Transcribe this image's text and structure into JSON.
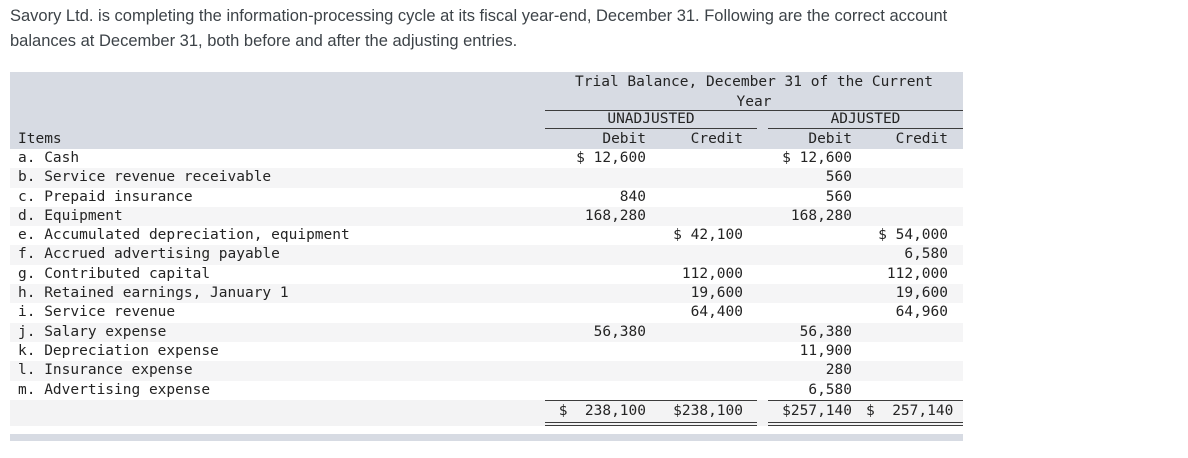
{
  "intro": {
    "line1": "Savory Ltd. is completing the information-processing cycle at its fiscal year-end, December 31. Following are the correct account",
    "line2": "balances at December 31, both before and after the adjusting entries."
  },
  "table": {
    "title_line1": "Trial Balance, December 31 of the Current",
    "title_line2": "Year",
    "group_unadjusted": "UNADJUSTED",
    "group_adjusted": "ADJUSTED",
    "items_header": "Items",
    "col_headers": {
      "unadjusted_debit": "Debit",
      "unadjusted_credit": "Credit",
      "adjusted_debit": "Debit",
      "adjusted_credit": "Credit"
    },
    "rows": [
      {
        "item": "a. Cash",
        "u_debit": "$ 12,600",
        "u_credit": "",
        "a_debit": "$ 12,600",
        "a_credit": ""
      },
      {
        "item": "b. Service revenue receivable",
        "u_debit": "",
        "u_credit": "",
        "a_debit": "560",
        "a_credit": ""
      },
      {
        "item": "c. Prepaid insurance",
        "u_debit": "840",
        "u_credit": "",
        "a_debit": "560",
        "a_credit": ""
      },
      {
        "item": "d. Equipment",
        "u_debit": "168,280",
        "u_credit": "",
        "a_debit": "168,280",
        "a_credit": ""
      },
      {
        "item": "e. Accumulated depreciation, equipment",
        "u_debit": "",
        "u_credit": "$ 42,100",
        "a_debit": "",
        "a_credit": "$ 54,000"
      },
      {
        "item": "f. Accrued advertising payable",
        "u_debit": "",
        "u_credit": "",
        "a_debit": "",
        "a_credit": "6,580"
      },
      {
        "item": "g. Contributed capital",
        "u_debit": "",
        "u_credit": "112,000",
        "a_debit": "",
        "a_credit": "112,000"
      },
      {
        "item": "h. Retained earnings, January 1",
        "u_debit": "",
        "u_credit": "19,600",
        "a_debit": "",
        "a_credit": "19,600"
      },
      {
        "item": "i. Service revenue",
        "u_debit": "",
        "u_credit": "64,400",
        "a_debit": "",
        "a_credit": "64,960"
      },
      {
        "item": "j. Salary expense",
        "u_debit": "56,380",
        "u_credit": "",
        "a_debit": "56,380",
        "a_credit": ""
      },
      {
        "item": "k. Depreciation expense",
        "u_debit": "",
        "u_credit": "",
        "a_debit": "11,900",
        "a_credit": ""
      },
      {
        "item": "l. Insurance expense",
        "u_debit": "",
        "u_credit": "",
        "a_debit": "280",
        "a_credit": ""
      },
      {
        "item": "m. Advertising expense",
        "u_debit": "",
        "u_credit": "",
        "a_debit": "6,580",
        "a_credit": ""
      }
    ],
    "totals": {
      "u_debit": "$  238,100",
      "u_credit": "$238,100",
      "a_debit": "$257,140",
      "a_credit": "$  257,140"
    }
  },
  "colors": {
    "header_band": "#d7dbe3",
    "alt_row": "#f5f5f6",
    "totals_row": "#f3f3f4",
    "rule": "#3c3c3c",
    "table_text": "#242424",
    "intro_text": "#3d4348"
  }
}
